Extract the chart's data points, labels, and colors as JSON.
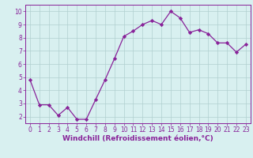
{
  "x": [
    0,
    1,
    2,
    3,
    4,
    5,
    6,
    7,
    8,
    9,
    10,
    11,
    12,
    13,
    14,
    15,
    16,
    17,
    18,
    19,
    20,
    21,
    22,
    23
  ],
  "y": [
    4.8,
    2.9,
    2.9,
    2.1,
    2.7,
    1.8,
    1.8,
    3.3,
    4.8,
    6.4,
    8.1,
    8.5,
    9.0,
    9.3,
    9.0,
    10.0,
    9.5,
    8.4,
    8.6,
    8.3,
    7.6,
    7.6,
    6.9,
    7.5
  ],
  "line_color": "#882299",
  "marker": "D",
  "marker_size": 2.2,
  "bg_color": "#d8f0f0",
  "grid_color": "#b0d0d0",
  "xlabel": "Windchill (Refroidissement éolien,°C)",
  "xlabel_color": "#882299",
  "tick_color": "#882299",
  "ylim": [
    1.5,
    10.5
  ],
  "xlim": [
    -0.5,
    23.5
  ],
  "yticks": [
    2,
    3,
    4,
    5,
    6,
    7,
    8,
    9,
    10
  ],
  "xticks": [
    0,
    1,
    2,
    3,
    4,
    5,
    6,
    7,
    8,
    9,
    10,
    11,
    12,
    13,
    14,
    15,
    16,
    17,
    18,
    19,
    20,
    21,
    22,
    23
  ],
  "tick_fontsize": 5.5,
  "xlabel_fontsize": 6.5,
  "linewidth": 0.9
}
